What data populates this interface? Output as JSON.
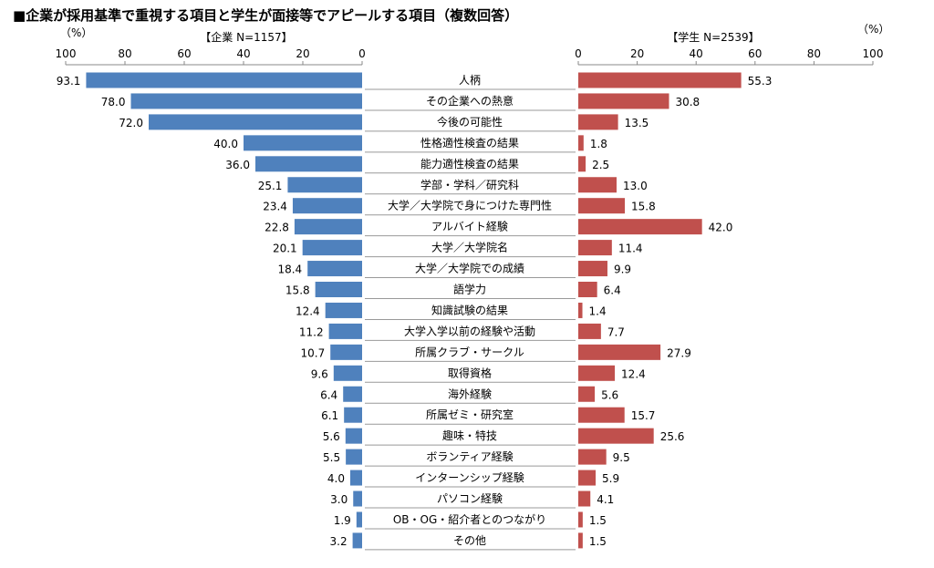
{
  "chart_data": {
    "type": "bar",
    "title": "■企業が採用基準で重視する項目と学生が面接等でアピールする項目（複数回答）",
    "unit_label_left": "（%）",
    "unit_label_right": "（%）",
    "xlim": [
      0,
      100
    ],
    "ticks": [
      "0",
      "20",
      "40",
      "60",
      "80",
      "100"
    ],
    "categories": [
      "人柄",
      "その企業への熱意",
      "今後の可能性",
      "性格適性検査の結果",
      "能力適性検査の結果",
      "学部・学科／研究科",
      "大学／大学院で身につけた専門性",
      "アルバイト経験",
      "大学／大学院名",
      "大学／大学院での成績",
      "語学力",
      "知識試験の結果",
      "大学入学以前の経験や活動",
      "所属クラブ・サークル",
      "取得資格",
      "海外経験",
      "所属ゼミ・研究室",
      "趣味・特技",
      "ボランティア経験",
      "インターンシップ経験",
      "パソコン経験",
      "OB・OG・紹介者とのつながり",
      "その他"
    ],
    "series": [
      {
        "name": "【企業 N=1157】",
        "side": "left",
        "color": "#4f81bd",
        "values": [
          93.1,
          78.0,
          72.0,
          40.0,
          36.0,
          25.1,
          23.4,
          22.8,
          20.1,
          18.4,
          15.8,
          12.4,
          11.2,
          10.7,
          9.6,
          6.4,
          6.1,
          5.6,
          5.5,
          4.0,
          3.0,
          1.9,
          3.2
        ],
        "labels": [
          "93.1",
          "78.0",
          "72.0",
          "40.0",
          "36.0",
          "25.1",
          "23.4",
          "22.8",
          "20.1",
          "18.4",
          "15.8",
          "12.4",
          "11.2",
          "10.7",
          "9.6",
          "6.4",
          "6.1",
          "5.6",
          "5.5",
          "4.0",
          "3.0",
          "1.9",
          "3.2"
        ]
      },
      {
        "name": "【学生 N=2539】",
        "side": "right",
        "color": "#c0504d",
        "values": [
          55.3,
          30.8,
          13.5,
          1.8,
          2.5,
          13.0,
          15.8,
          42.0,
          11.4,
          9.9,
          6.4,
          1.4,
          7.7,
          27.9,
          12.4,
          5.6,
          15.7,
          25.6,
          9.5,
          5.9,
          4.1,
          1.5,
          1.5
        ],
        "labels": [
          "55.3",
          "30.8",
          "13.5",
          "1.8",
          "2.5",
          "13.0",
          "15.8",
          "42.0",
          "11.4",
          "9.9",
          "6.4",
          "1.4",
          "7.7",
          "27.9",
          "12.4",
          "5.6",
          "15.7",
          "25.6",
          "9.5",
          "5.9",
          "4.1",
          "1.5",
          "1.5"
        ]
      }
    ]
  }
}
